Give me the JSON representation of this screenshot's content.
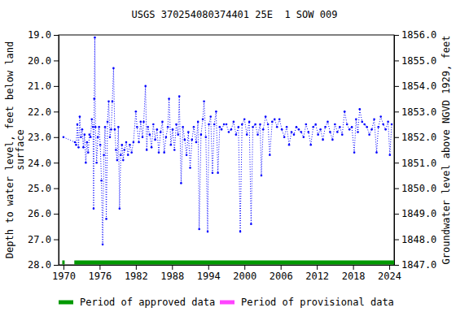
{
  "chart_data": {
    "type": "scatter",
    "title": "USGS 370254080374401 25E  1 SOW 009",
    "y_label": "Depth to water level, feet below land\nsurface",
    "y2_label": "Groundwater level above NGVD 1929, feet",
    "color": "#0000ff",
    "marker": "circle",
    "line_style": "dotted",
    "legend": "bottom",
    "x": [
      1970.0,
      1971.9,
      1972.1,
      1972.3,
      1972.5,
      1972.7,
      1972.9,
      1973.1,
      1973.3,
      1973.5,
      1973.7,
      1973.9,
      1974.1,
      1974.3,
      1974.5,
      1974.7,
      1974.9,
      1975.0,
      1975.1,
      1975.2,
      1975.3,
      1975.5,
      1975.7,
      1975.9,
      1976.1,
      1976.3,
      1976.5,
      1976.7,
      1976.9,
      1977.1,
      1977.3,
      1977.5,
      1977.7,
      1977.9,
      1978.1,
      1978.3,
      1978.5,
      1978.7,
      1978.9,
      1979.1,
      1979.3,
      1979.5,
      1979.7,
      1979.9,
      1980.1,
      1980.4,
      1980.7,
      1981.0,
      1981.3,
      1981.6,
      1982.0,
      1982.2,
      1982.5,
      1982.8,
      1983.1,
      1983.3,
      1983.6,
      1983.8,
      1984.0,
      1984.3,
      1984.6,
      1984.9,
      1985.2,
      1985.5,
      1985.8,
      1986.1,
      1986.4,
      1986.7,
      1987.0,
      1987.3,
      1987.5,
      1987.8,
      1988.1,
      1988.4,
      1988.7,
      1989.0,
      1989.2,
      1989.5,
      1989.8,
      1990.1,
      1990.4,
      1990.7,
      1991.0,
      1991.3,
      1991.6,
      1992.0,
      1992.3,
      1992.5,
      1992.8,
      1993.1,
      1993.3,
      1993.6,
      1993.9,
      1994.1,
      1994.4,
      1994.7,
      1995.0,
      1995.3,
      1995.6,
      1995.9,
      1996.2,
      1996.6,
      1997.0,
      1997.4,
      1997.8,
      1998.2,
      1998.6,
      1999.0,
      1999.3,
      1999.6,
      2000.0,
      2000.4,
      2000.8,
      2001.1,
      2001.4,
      2001.8,
      2002.2,
      2002.6,
      2002.8,
      2003.1,
      2003.5,
      2003.9,
      2004.2,
      2004.6,
      2005.0,
      2005.4,
      2005.8,
      2006.2,
      2006.6,
      2007.0,
      2007.4,
      2007.8,
      2008.2,
      2008.6,
      2009.0,
      2009.4,
      2009.8,
      2010.2,
      2010.6,
      2011.0,
      2011.4,
      2011.8,
      2012.2,
      2012.6,
      2013.0,
      2013.4,
      2013.8,
      2014.2,
      2014.6,
      2015.0,
      2015.4,
      2015.8,
      2016.2,
      2016.6,
      2017.0,
      2017.4,
      2017.8,
      2018.2,
      2018.5,
      2018.8,
      2019.1,
      2019.5,
      2019.9,
      2020.3,
      2020.7,
      2021.1,
      2021.5,
      2021.9,
      2022.2,
      2022.6,
      2023.0,
      2023.4,
      2023.8,
      2024.1,
      2024.4
    ],
    "values": [
      23.0,
      23.2,
      23.3,
      22.5,
      23.4,
      22.2,
      23.0,
      22.7,
      23.4,
      22.9,
      24.0,
      23.2,
      23.6,
      22.9,
      23.0,
      22.3,
      22.6,
      25.8,
      21.5,
      19.1,
      22.6,
      24.0,
      23.0,
      22.6,
      23.3,
      24.7,
      27.2,
      23.7,
      22.6,
      26.2,
      22.4,
      21.6,
      23.0,
      22.7,
      21.6,
      20.3,
      22.7,
      23.5,
      23.9,
      22.6,
      25.8,
      23.7,
      23.3,
      23.9,
      23.5,
      23.2,
      23.7,
      23.3,
      23.6,
      23.2,
      22.0,
      22.6,
      23.2,
      22.4,
      23.0,
      22.4,
      21.0,
      23.5,
      22.6,
      22.9,
      23.4,
      22.5,
      23.1,
      22.7,
      23.6,
      22.8,
      22.4,
      23.6,
      23.0,
      22.6,
      21.5,
      23.3,
      22.7,
      23.5,
      22.5,
      22.9,
      21.4,
      24.8,
      22.6,
      23.1,
      23.7,
      22.8,
      24.2,
      23.1,
      22.6,
      23.2,
      22.4,
      26.6,
      22.9,
      22.3,
      21.6,
      23.0,
      26.7,
      22.5,
      22.2,
      24.4,
      22.5,
      22.0,
      24.4,
      22.6,
      22.7,
      22.5,
      22.5,
      22.8,
      22.7,
      22.4,
      22.9,
      22.6,
      26.7,
      22.5,
      22.3,
      22.9,
      22.4,
      26.4,
      22.6,
      22.5,
      22.9,
      22.5,
      24.5,
      22.7,
      22.2,
      22.5,
      23.7,
      22.4,
      22.3,
      22.6,
      22.3,
      22.7,
      23.0,
      22.6,
      23.3,
      22.8,
      22.9,
      22.6,
      22.7,
      22.8,
      23.0,
      22.5,
      22.8,
      23.3,
      22.6,
      22.5,
      22.9,
      22.7,
      23.1,
      22.6,
      22.4,
      22.8,
      23.1,
      22.5,
      22.8,
      22.6,
      22.9,
      22.0,
      22.5,
      22.7,
      22.6,
      23.6,
      22.3,
      22.8,
      21.9,
      22.4,
      22.5,
      22.6,
      22.9,
      22.7,
      22.3,
      23.6,
      22.6,
      22.2,
      22.5,
      22.7,
      22.4,
      23.7,
      22.5
    ],
    "xlim": [
      1969.2,
      2024.8
    ],
    "xticks": [
      1970,
      1976,
      1982,
      1988,
      1994,
      2000,
      2006,
      2012,
      2018,
      2024
    ],
    "ylim": [
      28,
      19
    ],
    "yticks": [
      {
        "value": 19,
        "label": "19.0"
      },
      {
        "value": 20,
        "label": "20.0"
      },
      {
        "value": 21,
        "label": "21.0"
      },
      {
        "value": 22,
        "label": "22.0"
      },
      {
        "value": 23,
        "label": "23.0"
      },
      {
        "value": 24,
        "label": "24.0"
      },
      {
        "value": 25,
        "label": "25.0"
      },
      {
        "value": 26,
        "label": "26.0"
      },
      {
        "value": 27,
        "label": "27.0"
      },
      {
        "value": 28,
        "label": "28.0"
      }
    ],
    "y2lim": [
      1847,
      1856
    ],
    "y2ticks": [
      {
        "value": 1856,
        "label": "1856.0"
      },
      {
        "value": 1855,
        "label": "1855.0"
      },
      {
        "value": 1854,
        "label": "1854.0"
      },
      {
        "value": 1853,
        "label": "1853.0"
      },
      {
        "value": 1852,
        "label": "1852.0"
      },
      {
        "value": 1851,
        "label": "1851.0"
      },
      {
        "value": 1850,
        "label": "1850.0"
      },
      {
        "value": 1849,
        "label": "1849.0"
      },
      {
        "value": 1848,
        "label": "1848.0"
      },
      {
        "value": 1847,
        "label": "1847.0"
      }
    ],
    "approved_periods": [
      [
        1969.8,
        1970.2
      ],
      [
        1971.8,
        2024.8
      ]
    ],
    "legend_items": [
      {
        "label": "Period of approved data",
        "color": "#009900"
      },
      {
        "label": "Period of provisional data",
        "color": "#ff44ff"
      }
    ]
  }
}
